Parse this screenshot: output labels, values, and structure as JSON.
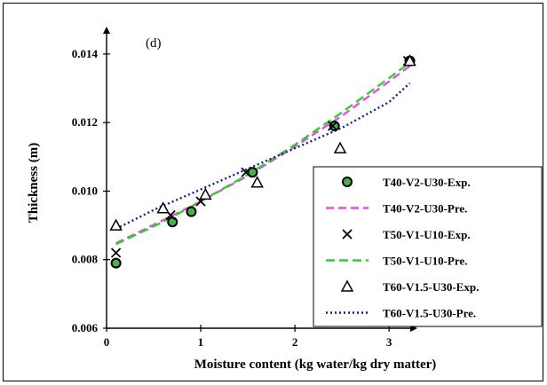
{
  "chart_data": {
    "type": "scatter",
    "panel_label": "(d)",
    "xlabel": "Moisture content (kg water/kg dry matter)",
    "ylabel": "Thickness (m)",
    "xlim": [
      0,
      3.3
    ],
    "ylim": [
      0.006,
      0.0148
    ],
    "x_ticks": [
      0,
      1,
      2,
      3
    ],
    "y_ticks": [
      0.006,
      0.008,
      0.01,
      0.012,
      0.014
    ],
    "y_tick_labels": [
      "0.006",
      "0.008",
      "0.010",
      "0.012",
      "0.014"
    ],
    "grid": false,
    "legend_position": "right",
    "series": [
      {
        "name": "T40-V2-U30-Exp.",
        "kind": "marker",
        "marker": "circle",
        "color": "#4caf50",
        "edge_color": "#000000",
        "x": [
          0.1,
          0.7,
          0.9,
          1.55,
          2.42,
          3.22
        ],
        "y": [
          0.0079,
          0.0091,
          0.0094,
          0.01055,
          0.0119,
          0.0138
        ]
      },
      {
        "name": "T40-V2-U30-Pre.",
        "kind": "line",
        "dash": "9,5",
        "color": "#e64ce6",
        "x": [
          0.1,
          0.6,
          1.0,
          1.5,
          2.0,
          2.5,
          3.0,
          3.22
        ],
        "y": [
          0.00848,
          0.00915,
          0.0097,
          0.01045,
          0.0113,
          0.0122,
          0.0132,
          0.01365
        ]
      },
      {
        "name": "T50-V1-U10-Exp.",
        "kind": "marker",
        "marker": "cross",
        "color": "#000000",
        "x": [
          0.1,
          0.68,
          1.0,
          1.48,
          2.4,
          3.2
        ],
        "y": [
          0.0082,
          0.0093,
          0.0097,
          0.01055,
          0.0119,
          0.0138
        ]
      },
      {
        "name": "T50-V1-U10-Pre.",
        "kind": "line",
        "dash": "10,5",
        "color": "#33cc33",
        "x": [
          0.1,
          0.6,
          1.0,
          1.5,
          2.0,
          2.5,
          3.0,
          3.22
        ],
        "y": [
          0.00845,
          0.0091,
          0.0097,
          0.01048,
          0.01135,
          0.0123,
          0.0133,
          0.01375
        ]
      },
      {
        "name": "T60-V1.5-U30-Exp.",
        "kind": "marker",
        "marker": "triangle",
        "color": "#000000",
        "x": [
          0.1,
          0.6,
          1.05,
          1.6,
          2.48,
          3.22
        ],
        "y": [
          0.009,
          0.0095,
          0.0099,
          0.01025,
          0.01125,
          0.0138
        ]
      },
      {
        "name": "T60-V1.5-U30-Pre.",
        "kind": "line",
        "dash": "2,3",
        "color": "#1a1a8c",
        "x": [
          0.1,
          0.5,
          1.0,
          1.5,
          2.0,
          2.5,
          3.0,
          3.22
        ],
        "y": [
          0.0089,
          0.00945,
          0.01005,
          0.01065,
          0.01125,
          0.01185,
          0.0126,
          0.01315
        ]
      }
    ]
  }
}
